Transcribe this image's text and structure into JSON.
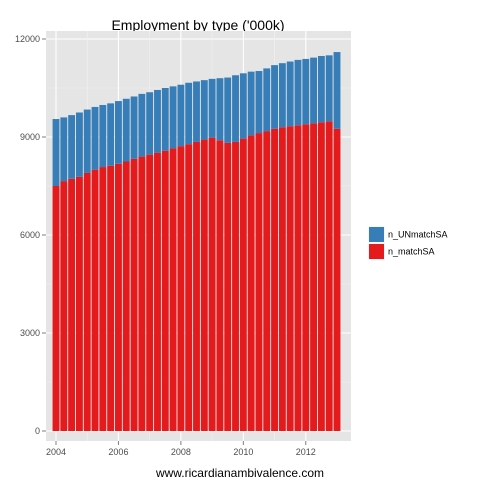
{
  "chart_data": {
    "type": "bar",
    "stacked": true,
    "title": "Employment by type ('000k)",
    "xlabel": "",
    "ylabel": "",
    "caption": "www.ricardianambivalence.com",
    "x_ticks": [
      "2004",
      "2006",
      "2008",
      "2010",
      "2012"
    ],
    "y_ticks": [
      0,
      3000,
      6000,
      9000,
      12000
    ],
    "ylim": [
      0,
      12000
    ],
    "xlim": [
      2004.0,
      2013.0
    ],
    "grid": true,
    "legend_position": "right",
    "series": [
      {
        "name": "n_matchSA",
        "color": "#e41a1c",
        "x": [
          2004.0,
          2004.25,
          2004.5,
          2004.75,
          2005.0,
          2005.25,
          2005.5,
          2005.75,
          2006.0,
          2006.25,
          2006.5,
          2006.75,
          2007.0,
          2007.25,
          2007.5,
          2007.75,
          2008.0,
          2008.25,
          2008.5,
          2008.75,
          2009.0,
          2009.25,
          2009.5,
          2009.75,
          2010.0,
          2010.25,
          2010.5,
          2010.75,
          2011.0,
          2011.25,
          2011.5,
          2011.75,
          2012.0,
          2012.25,
          2012.5,
          2012.75,
          2013.0
        ],
        "values": [
          7500,
          7650,
          7720,
          7780,
          7900,
          8000,
          8080,
          8120,
          8180,
          8250,
          8330,
          8400,
          8460,
          8520,
          8580,
          8650,
          8720,
          8780,
          8850,
          8920,
          8980,
          8900,
          8820,
          8850,
          8950,
          9050,
          9120,
          9180,
          9250,
          9300,
          9330,
          9360,
          9390,
          9420,
          9450,
          9480,
          9250
        ]
      },
      {
        "name": "n_UNmatchSA",
        "color": "#377eb8",
        "x": [
          2004.0,
          2004.25,
          2004.5,
          2004.75,
          2005.0,
          2005.25,
          2005.5,
          2005.75,
          2006.0,
          2006.25,
          2006.5,
          2006.75,
          2007.0,
          2007.25,
          2007.5,
          2007.75,
          2008.0,
          2008.25,
          2008.5,
          2008.75,
          2009.0,
          2009.25,
          2009.5,
          2009.75,
          2010.0,
          2010.25,
          2010.5,
          2010.75,
          2011.0,
          2011.25,
          2011.5,
          2011.75,
          2012.0,
          2012.25,
          2012.5,
          2012.75,
          2013.0
        ],
        "values": [
          2050,
          1950,
          1950,
          1970,
          1940,
          1920,
          1900,
          1910,
          1920,
          1920,
          1910,
          1920,
          1910,
          1920,
          1920,
          1900,
          1880,
          1880,
          1850,
          1820,
          1800,
          1900,
          2000,
          2040,
          2000,
          1950,
          1900,
          1920,
          1950,
          1960,
          1980,
          2000,
          2000,
          2010,
          2030,
          2020,
          2350
        ]
      }
    ]
  }
}
